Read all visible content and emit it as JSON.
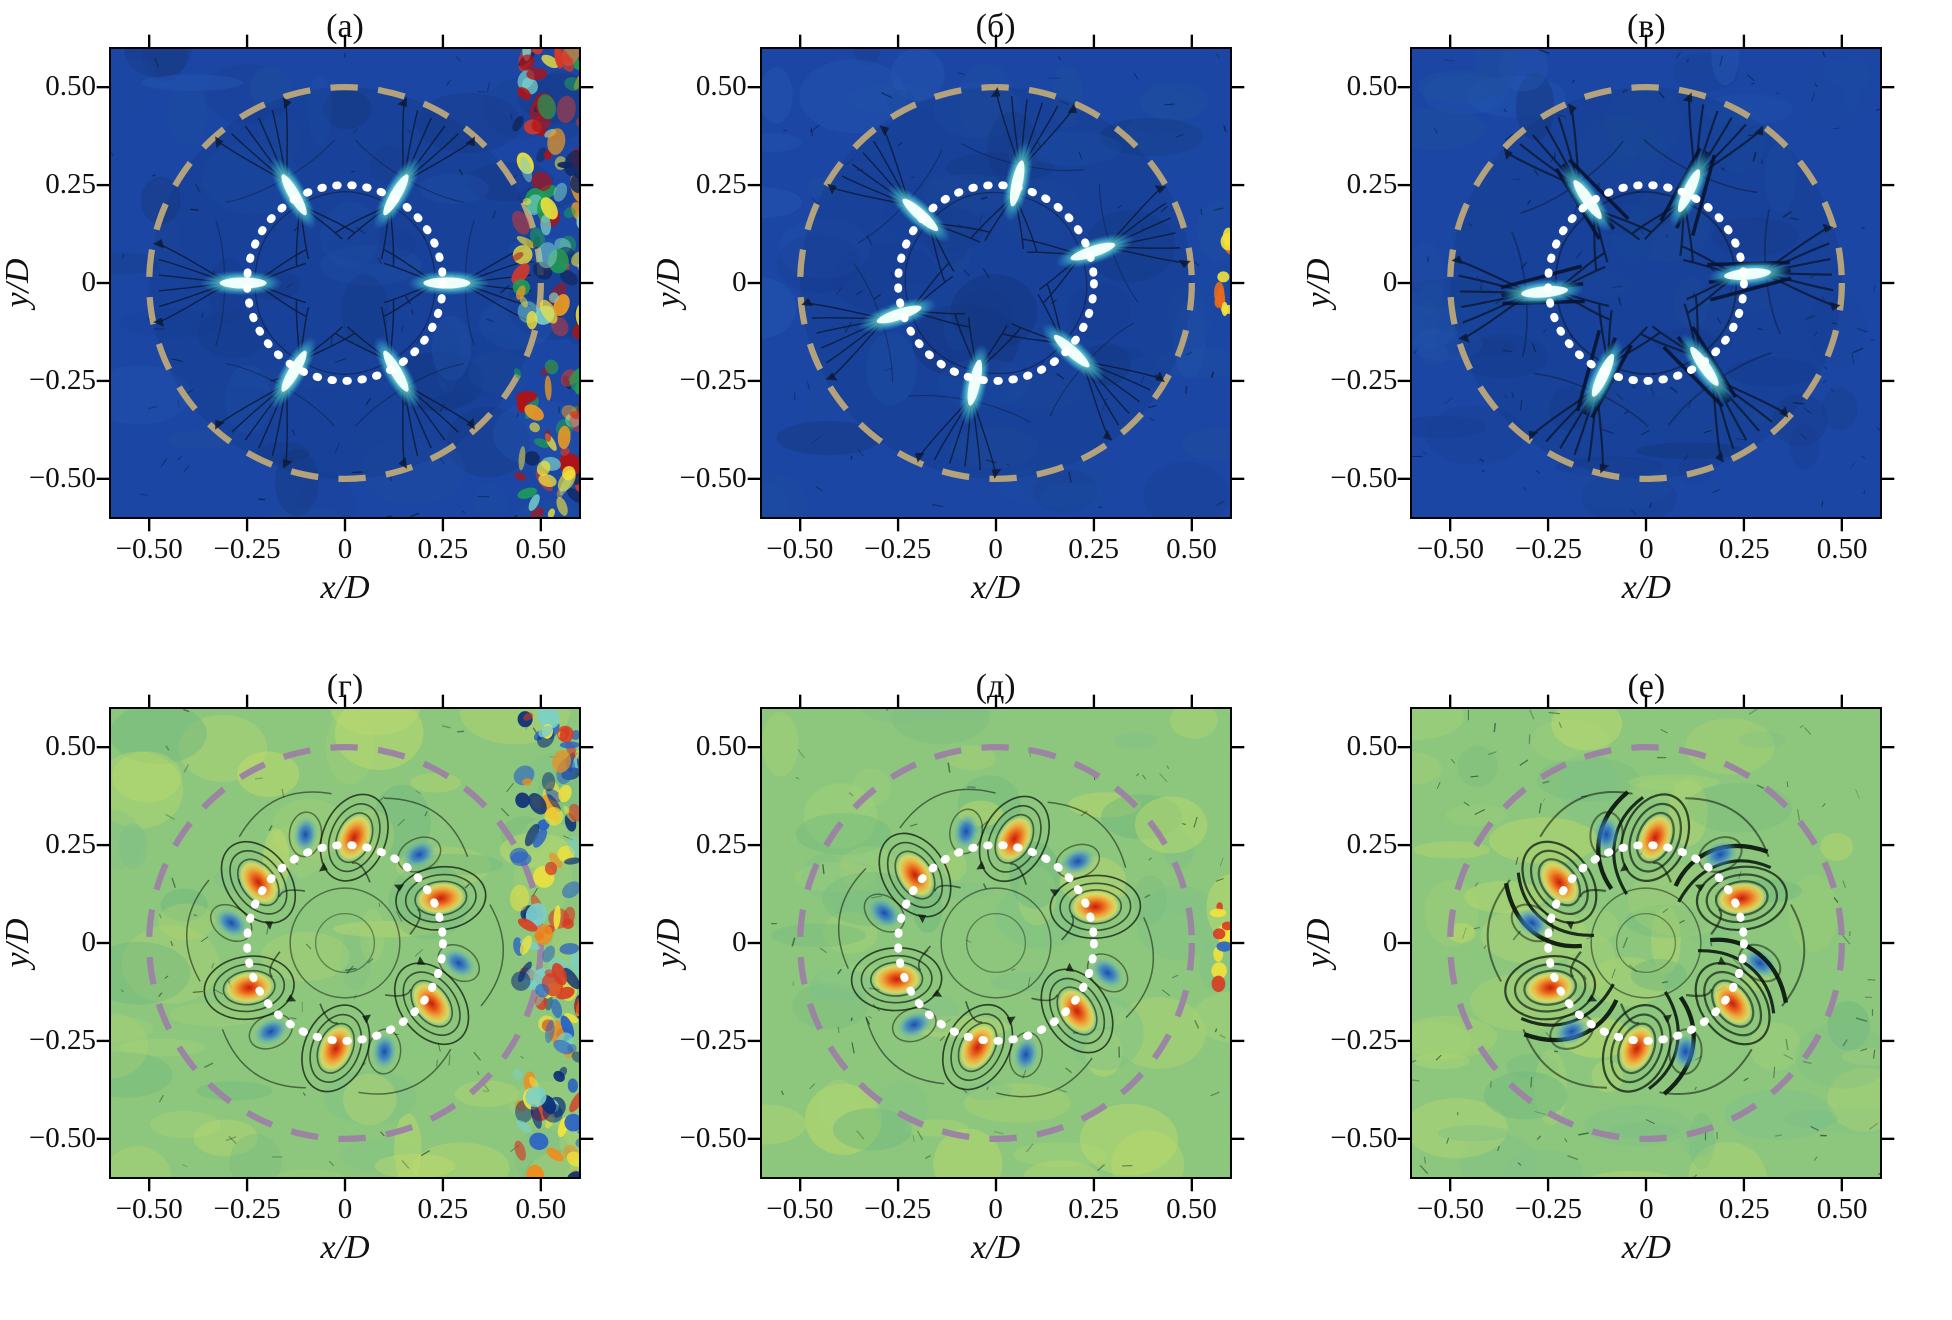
{
  "figure": {
    "kind": "scientific-figure",
    "rows": 2,
    "cols": 3
  },
  "axes": {
    "xlabel": "x/D",
    "ylabel": "y/D",
    "xlim": [
      -0.6,
      0.6
    ],
    "ylim": [
      -0.6,
      0.6
    ],
    "tick_values": [
      -0.5,
      -0.25,
      0,
      0.25,
      0.5
    ],
    "tick_labels": [
      "−0.50",
      "−0.25",
      "0",
      "0.25",
      "0.50"
    ]
  },
  "chart_data": {
    "type": "heatmap",
    "description": "2x3 grid of PIV flow-field maps around a circular device of diameter D. Top row (blue colormap): velocity-magnitude fields with six radial jet streaks crossing a white dotted circle of radius 0.25 D; a tan dashed circle marks radius 0.5 D. Bottom row (green colormap): vorticity fields with six counter-rotating vortex pairs (orange/red and blue cores) on the same dotted circle; a mauve dashed circle marks radius 0.5 D. Black streamlines overlay all panels. Panels (а) and (г) show a noisy multicolored turbulence band near x/D = 0.5; panels (в) and (е) show stronger dark streamline bundles.",
    "annotations": {
      "inner_dotted_circle_radius": 0.25,
      "outer_dashed_circle_radius": 0.5,
      "jet_ring_radius": 0.26,
      "vortex_ring_radius": 0.27
    },
    "palette": {
      "top_background": "#1b46a3",
      "bottom_background": "#8dc77d",
      "jet_core": "#f2fffc",
      "jet_mid": "#9ff0e2",
      "vortex_positive_core": "#c21f0f",
      "vortex_positive_ring": "#f2a93a",
      "vortex_negative_core": "#1246ae",
      "outer_circle_top": "#b3a27b",
      "outer_circle_bottom": "#9c85a2",
      "inner_circle": "#ffffff",
      "streamline": "#0c1a36"
    },
    "panels": [
      {
        "label": "(а)",
        "row": "top",
        "field": "velocity-magnitude",
        "jet_angles_deg": [
          0,
          60,
          120,
          180,
          240,
          300
        ],
        "noise_stripe": true,
        "edge_noise": "none",
        "intensity": 1.0
      },
      {
        "label": "(б)",
        "row": "top",
        "field": "velocity-magnitude",
        "jet_angles_deg": [
          18,
          78,
          138,
          198,
          258,
          318
        ],
        "noise_stripe": false,
        "edge_noise": "light",
        "intensity": 1.0
      },
      {
        "label": "(в)",
        "row": "top",
        "field": "velocity-magnitude",
        "jet_angles_deg": [
          5,
          65,
          125,
          185,
          245,
          305
        ],
        "noise_stripe": false,
        "edge_noise": "none",
        "intensity": 1.5
      },
      {
        "label": "(г)",
        "row": "bottom",
        "field": "vorticity",
        "vortex_angles_deg": [
          25,
          85,
          145,
          205,
          265,
          325
        ],
        "blue_offset_deg": -35,
        "noise_stripe": true,
        "edge_noise": "none",
        "intensity": 1.0
      },
      {
        "label": "(д)",
        "row": "bottom",
        "field": "vorticity",
        "vortex_angles_deg": [
          20,
          80,
          140,
          200,
          260,
          320
        ],
        "blue_offset_deg": -35,
        "noise_stripe": false,
        "edge_noise": "light",
        "intensity": 1.0
      },
      {
        "label": "(е)",
        "row": "bottom",
        "field": "vorticity",
        "vortex_angles_deg": [
          25,
          85,
          145,
          205,
          265,
          325
        ],
        "blue_offset_deg": -35,
        "noise_stripe": false,
        "edge_noise": "none",
        "intensity": 1.5
      }
    ]
  }
}
